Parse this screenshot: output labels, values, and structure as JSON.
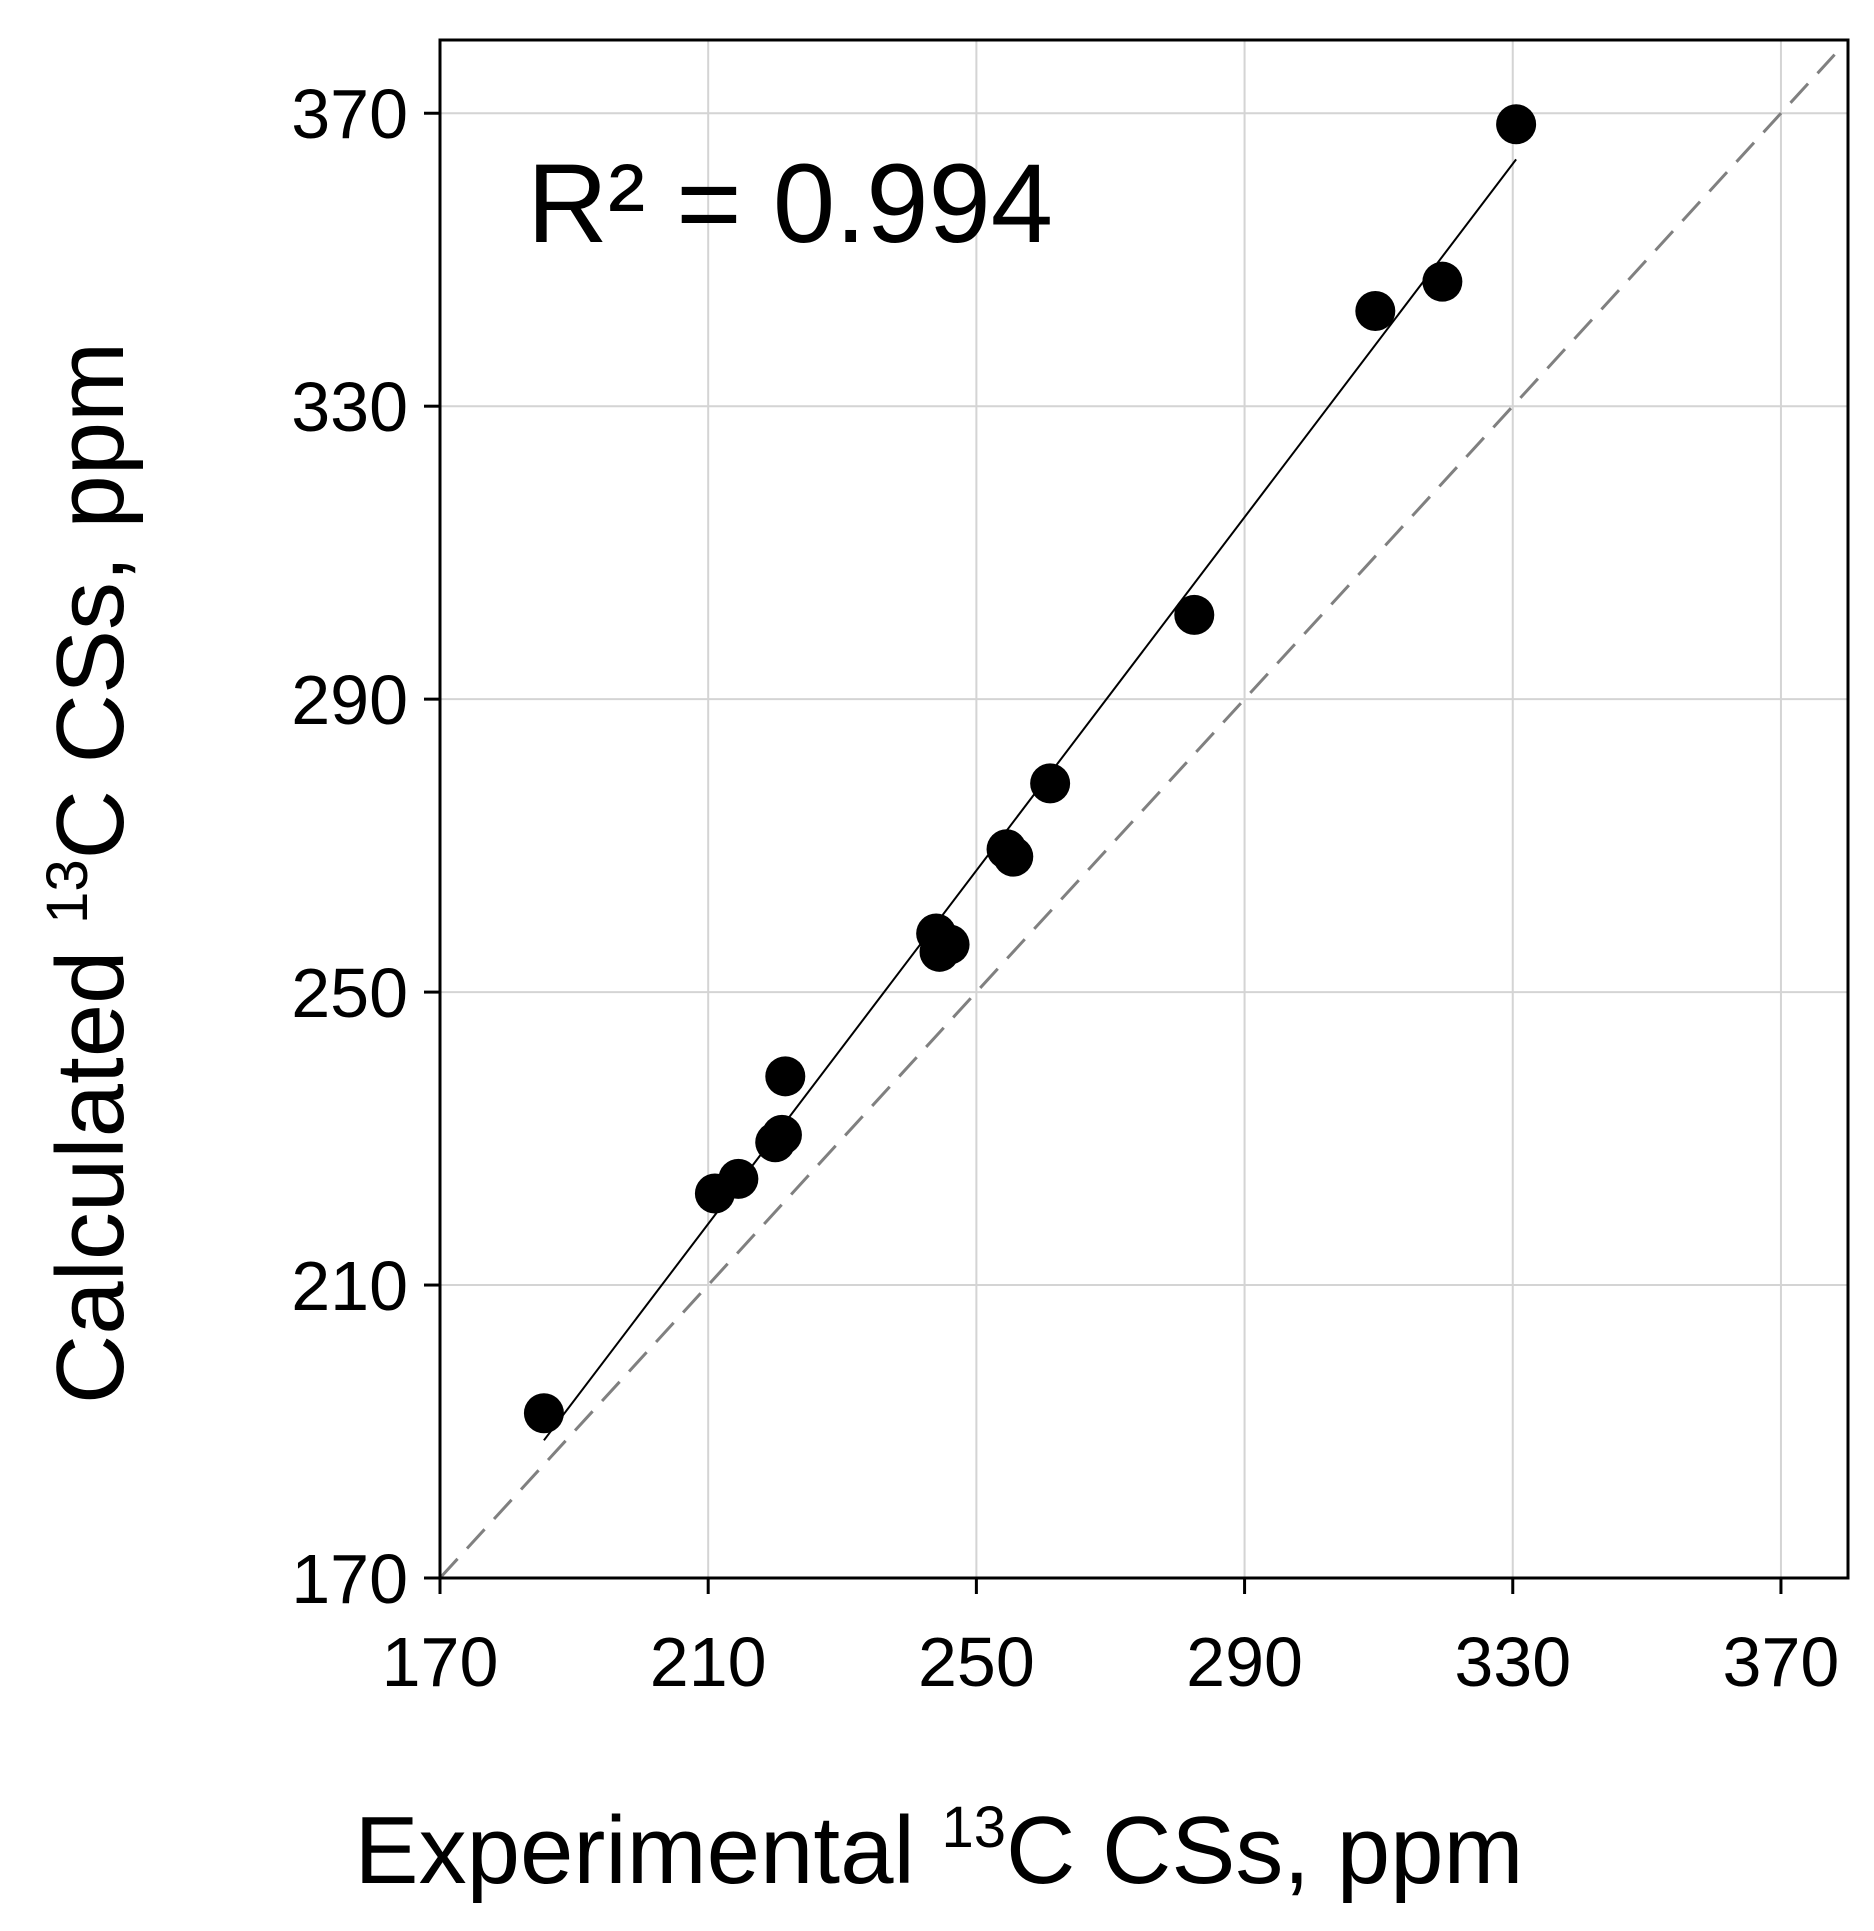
{
  "chart_data": {
    "type": "scatter",
    "title": "",
    "xlabel": {
      "prefix": "Experimental ",
      "superscript": "13",
      "suffix": "C CSs, ppm"
    },
    "ylabel": {
      "prefix": "Calculated ",
      "superscript": "13",
      "suffix": "C CSs, ppm"
    },
    "xlim": [
      170,
      380
    ],
    "ylim": [
      170,
      380
    ],
    "xticks": [
      170,
      210,
      250,
      290,
      330,
      370
    ],
    "yticks": [
      170,
      210,
      250,
      290,
      330,
      370
    ],
    "grid": true,
    "annotation": "R² = 0.994",
    "series": [
      {
        "name": "data",
        "marker": "filled-circle",
        "color": "#000000",
        "points": [
          {
            "x": 185.5,
            "y": 192.5
          },
          {
            "x": 211.0,
            "y": 222.5
          },
          {
            "x": 214.5,
            "y": 224.5
          },
          {
            "x": 220.0,
            "y": 229.5
          },
          {
            "x": 221.0,
            "y": 230.5
          },
          {
            "x": 221.5,
            "y": 238.5
          },
          {
            "x": 244.0,
            "y": 258.0
          },
          {
            "x": 244.5,
            "y": 255.5
          },
          {
            "x": 246.0,
            "y": 256.5
          },
          {
            "x": 254.5,
            "y": 269.5
          },
          {
            "x": 255.5,
            "y": 268.5
          },
          {
            "x": 261.0,
            "y": 278.5
          },
          {
            "x": 282.5,
            "y": 301.5
          },
          {
            "x": 309.5,
            "y": 343.0
          },
          {
            "x": 319.5,
            "y": 347.0
          },
          {
            "x": 330.5,
            "y": 368.5
          }
        ]
      }
    ],
    "fit_line": {
      "x": [
        185.5,
        330.5
      ],
      "y": [
        188.8,
        363.7
      ],
      "color": "#000000"
    },
    "identity_line": {
      "x": [
        170,
        378
      ],
      "y": [
        170,
        378
      ],
      "color": "#808080",
      "dash": "dashed"
    }
  }
}
